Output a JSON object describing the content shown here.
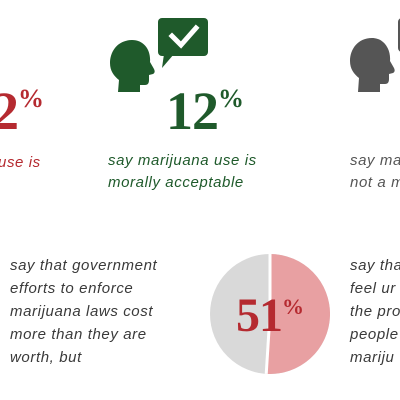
{
  "colors": {
    "red": "#b52a30",
    "green": "#1f5a2b",
    "gray": "#555555",
    "text": "#3a3a3a",
    "pie_light": "#d9d9d9",
    "pie_red": "#e8a0a2"
  },
  "icons": {
    "green_head": "head-with-checkmark-bubble-icon",
    "gray_head": "head-icon"
  },
  "left_column": {
    "stat_digit": "2",
    "stat_percent": "%",
    "caption_line1": "use is"
  },
  "middle_column": {
    "stat_digits": "12",
    "stat_percent": "%",
    "caption_line1": "say marijuana use is",
    "caption_line2": "morally acceptable"
  },
  "right_column": {
    "caption_line1": "say ma",
    "caption_line2": "not a m"
  },
  "lower_left": {
    "lines": [
      "say that government",
      "efforts to enforce",
      "marijuana laws cost",
      "more than they are",
      "worth, but"
    ]
  },
  "pie": {
    "value": 51,
    "digits": "51",
    "percent": "%"
  },
  "lower_right": {
    "lines": [
      "say tha",
      "feel ur",
      "the pro",
      "people",
      "mariju"
    ]
  }
}
